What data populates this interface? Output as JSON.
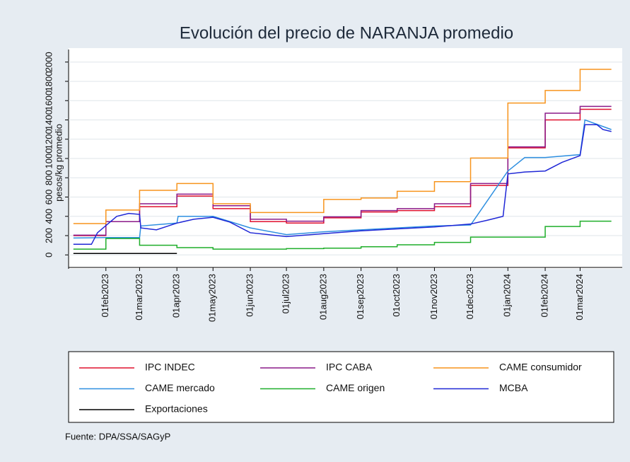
{
  "chart_data": {
    "type": "line",
    "title": "Evolución del precio de NARANJA promedio",
    "ylabel": "pesos/kg promedio",
    "note": "Fuente: DPA/SSA/SAGyP",
    "xlim": [
      "2023-01-01",
      "2024-04-05"
    ],
    "xticks": [
      {
        "value": "2023-02-01",
        "label": "01feb2023"
      },
      {
        "value": "2023-03-01",
        "label": "01mar2023"
      },
      {
        "value": "2023-04-01",
        "label": "01apr2023"
      },
      {
        "value": "2023-05-01",
        "label": "01may2023"
      },
      {
        "value": "2023-06-01",
        "label": "01jun2023"
      },
      {
        "value": "2023-07-01",
        "label": "01jul2023"
      },
      {
        "value": "2023-08-01",
        "label": "01aug2023"
      },
      {
        "value": "2023-09-01",
        "label": "01sep2023"
      },
      {
        "value": "2023-10-01",
        "label": "01oct2023"
      },
      {
        "value": "2023-11-01",
        "label": "01nov2023"
      },
      {
        "value": "2023-12-01",
        "label": "01dec2023"
      },
      {
        "value": "2024-01-01",
        "label": "01jan2024"
      },
      {
        "value": "2024-02-01",
        "label": "01feb2024"
      },
      {
        "value": "2024-03-01",
        "label": "01mar2024"
      }
    ],
    "ylim": [
      -130,
      2130
    ],
    "yticks": [
      0,
      200,
      400,
      600,
      800,
      1000,
      1200,
      1400,
      1600,
      1800,
      2000
    ],
    "grid": true,
    "series": [
      {
        "name": "IPC INDEC",
        "color": "#e0102f",
        "drawstyle": "steps-post",
        "x": [
          "2023-01-05",
          "2023-02-01",
          "2023-03-01",
          "2023-04-01",
          "2023-05-01",
          "2023-06-01",
          "2023-07-01",
          "2023-08-01",
          "2023-09-01",
          "2023-10-01",
          "2023-11-01",
          "2023-12-01",
          "2024-01-01",
          "2024-02-01",
          "2024-03-01",
          "2024-03-27"
        ],
        "values": [
          200,
          345,
          500,
          610,
          480,
          345,
          330,
          385,
          445,
          460,
          500,
          720,
          1110,
          1400,
          1510,
          1510
        ]
      },
      {
        "name": "IPC CABA",
        "color": "#8b1a89",
        "drawstyle": "steps-post",
        "x": [
          "2023-01-05",
          "2023-02-01",
          "2023-03-01",
          "2023-04-01",
          "2023-05-01",
          "2023-06-01",
          "2023-07-01",
          "2023-08-01",
          "2023-09-01",
          "2023-10-01",
          "2023-11-01",
          "2023-12-01",
          "2024-01-01",
          "2024-02-01",
          "2024-03-01",
          "2024-03-27"
        ],
        "values": [
          205,
          345,
          530,
          630,
          510,
          370,
          350,
          395,
          460,
          480,
          530,
          740,
          1120,
          1470,
          1540,
          1540
        ]
      },
      {
        "name": "CAME consumidor",
        "color": "#f7941d",
        "drawstyle": "steps-post",
        "x": [
          "2023-01-05",
          "2023-02-01",
          "2023-03-01",
          "2023-04-01",
          "2023-05-01",
          "2023-06-01",
          "2023-07-01",
          "2023-08-01",
          "2023-09-01",
          "2023-10-01",
          "2023-11-01",
          "2023-12-01",
          "2024-01-01",
          "2024-02-01",
          "2024-03-01",
          "2024-03-27"
        ],
        "values": [
          325,
          465,
          670,
          740,
          530,
          440,
          440,
          575,
          590,
          660,
          760,
          1005,
          1575,
          1705,
          1925,
          1925
        ]
      },
      {
        "name": "CAME mercado",
        "color": "#2e8fe0",
        "drawstyle": "linear",
        "x": [
          "2023-01-05",
          "2023-02-01",
          "2023-03-01",
          "2023-03-02",
          "2023-04-01",
          "2023-04-02",
          "2023-05-01",
          "2023-06-01",
          "2023-07-01",
          "2023-08-01",
          "2023-09-01",
          "2023-10-01",
          "2023-11-01",
          "2023-12-01",
          "2024-01-01",
          "2024-01-15",
          "2024-02-01",
          "2024-03-01",
          "2024-03-05",
          "2024-03-27"
        ],
        "values": [
          175,
          180,
          180,
          300,
          330,
          400,
          400,
          280,
          210,
          240,
          260,
          280,
          300,
          310,
          870,
          1010,
          1010,
          1040,
          1400,
          1300
        ]
      },
      {
        "name": "CAME origen",
        "color": "#1fae2a",
        "drawstyle": "steps-post",
        "x": [
          "2023-01-05",
          "2023-02-01",
          "2023-03-01",
          "2023-04-01",
          "2023-05-01",
          "2023-06-01",
          "2023-07-01",
          "2023-08-01",
          "2023-09-01",
          "2023-10-01",
          "2023-11-01",
          "2023-12-01",
          "2024-02-01",
          "2024-03-01",
          "2024-03-27"
        ],
        "values": [
          60,
          170,
          100,
          75,
          60,
          60,
          65,
          70,
          85,
          105,
          130,
          185,
          295,
          350,
          350
        ]
      },
      {
        "name": "MCBA",
        "color": "#1f27d6",
        "drawstyle": "linear",
        "x": [
          "2023-01-05",
          "2023-01-20",
          "2023-01-25",
          "2023-02-10",
          "2023-02-20",
          "2023-03-01",
          "2023-03-02",
          "2023-03-15",
          "2023-04-01",
          "2023-04-15",
          "2023-05-01",
          "2023-05-15",
          "2023-06-01",
          "2023-07-01",
          "2023-08-01",
          "2023-09-01",
          "2023-10-01",
          "2023-11-01",
          "2023-12-01",
          "2023-12-15",
          "2023-12-28",
          "2024-01-01",
          "2024-01-15",
          "2024-02-01",
          "2024-02-15",
          "2024-03-01",
          "2024-03-05",
          "2024-03-15",
          "2024-03-20",
          "2024-03-27"
        ],
        "values": [
          110,
          110,
          230,
          400,
          430,
          420,
          280,
          260,
          330,
          370,
          390,
          340,
          230,
          190,
          220,
          250,
          270,
          290,
          320,
          360,
          400,
          840,
          860,
          870,
          960,
          1030,
          1350,
          1350,
          1300,
          1280
        ]
      },
      {
        "name": "Exportaciones",
        "color": "#000000",
        "drawstyle": "linear",
        "x": [
          "2023-01-05",
          "2023-04-01"
        ],
        "values": [
          15,
          15
        ]
      }
    ]
  }
}
